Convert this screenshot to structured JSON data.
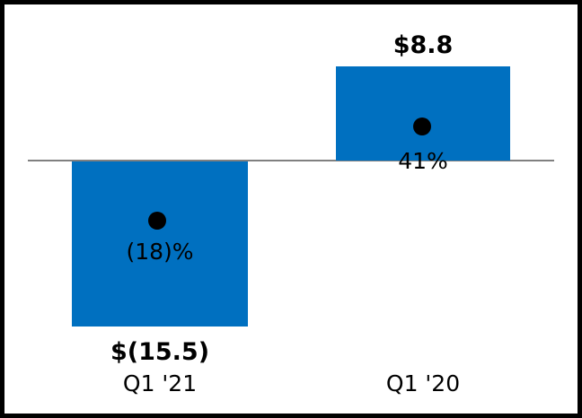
{
  "chart_data": {
    "type": "bar",
    "categories": [
      "Q1 '21",
      "Q1 '20"
    ],
    "values": [
      -15.5,
      8.8
    ],
    "value_labels": [
      "$(15.5)",
      "$8.8"
    ],
    "marker_labels": [
      "(18)%",
      "41%"
    ],
    "title": "",
    "xlabel": "",
    "ylabel": "",
    "ylim": [
      -24,
      14
    ],
    "grid": false,
    "legend": false,
    "zero_baseline": true,
    "markers": "black filled circle centered inside each bar",
    "colors": {
      "bar": "#0070C0",
      "marker": "#000000",
      "zero_line": "#808080",
      "text": "#000000",
      "frame_border": "#000000",
      "background": "#ffffff"
    }
  }
}
